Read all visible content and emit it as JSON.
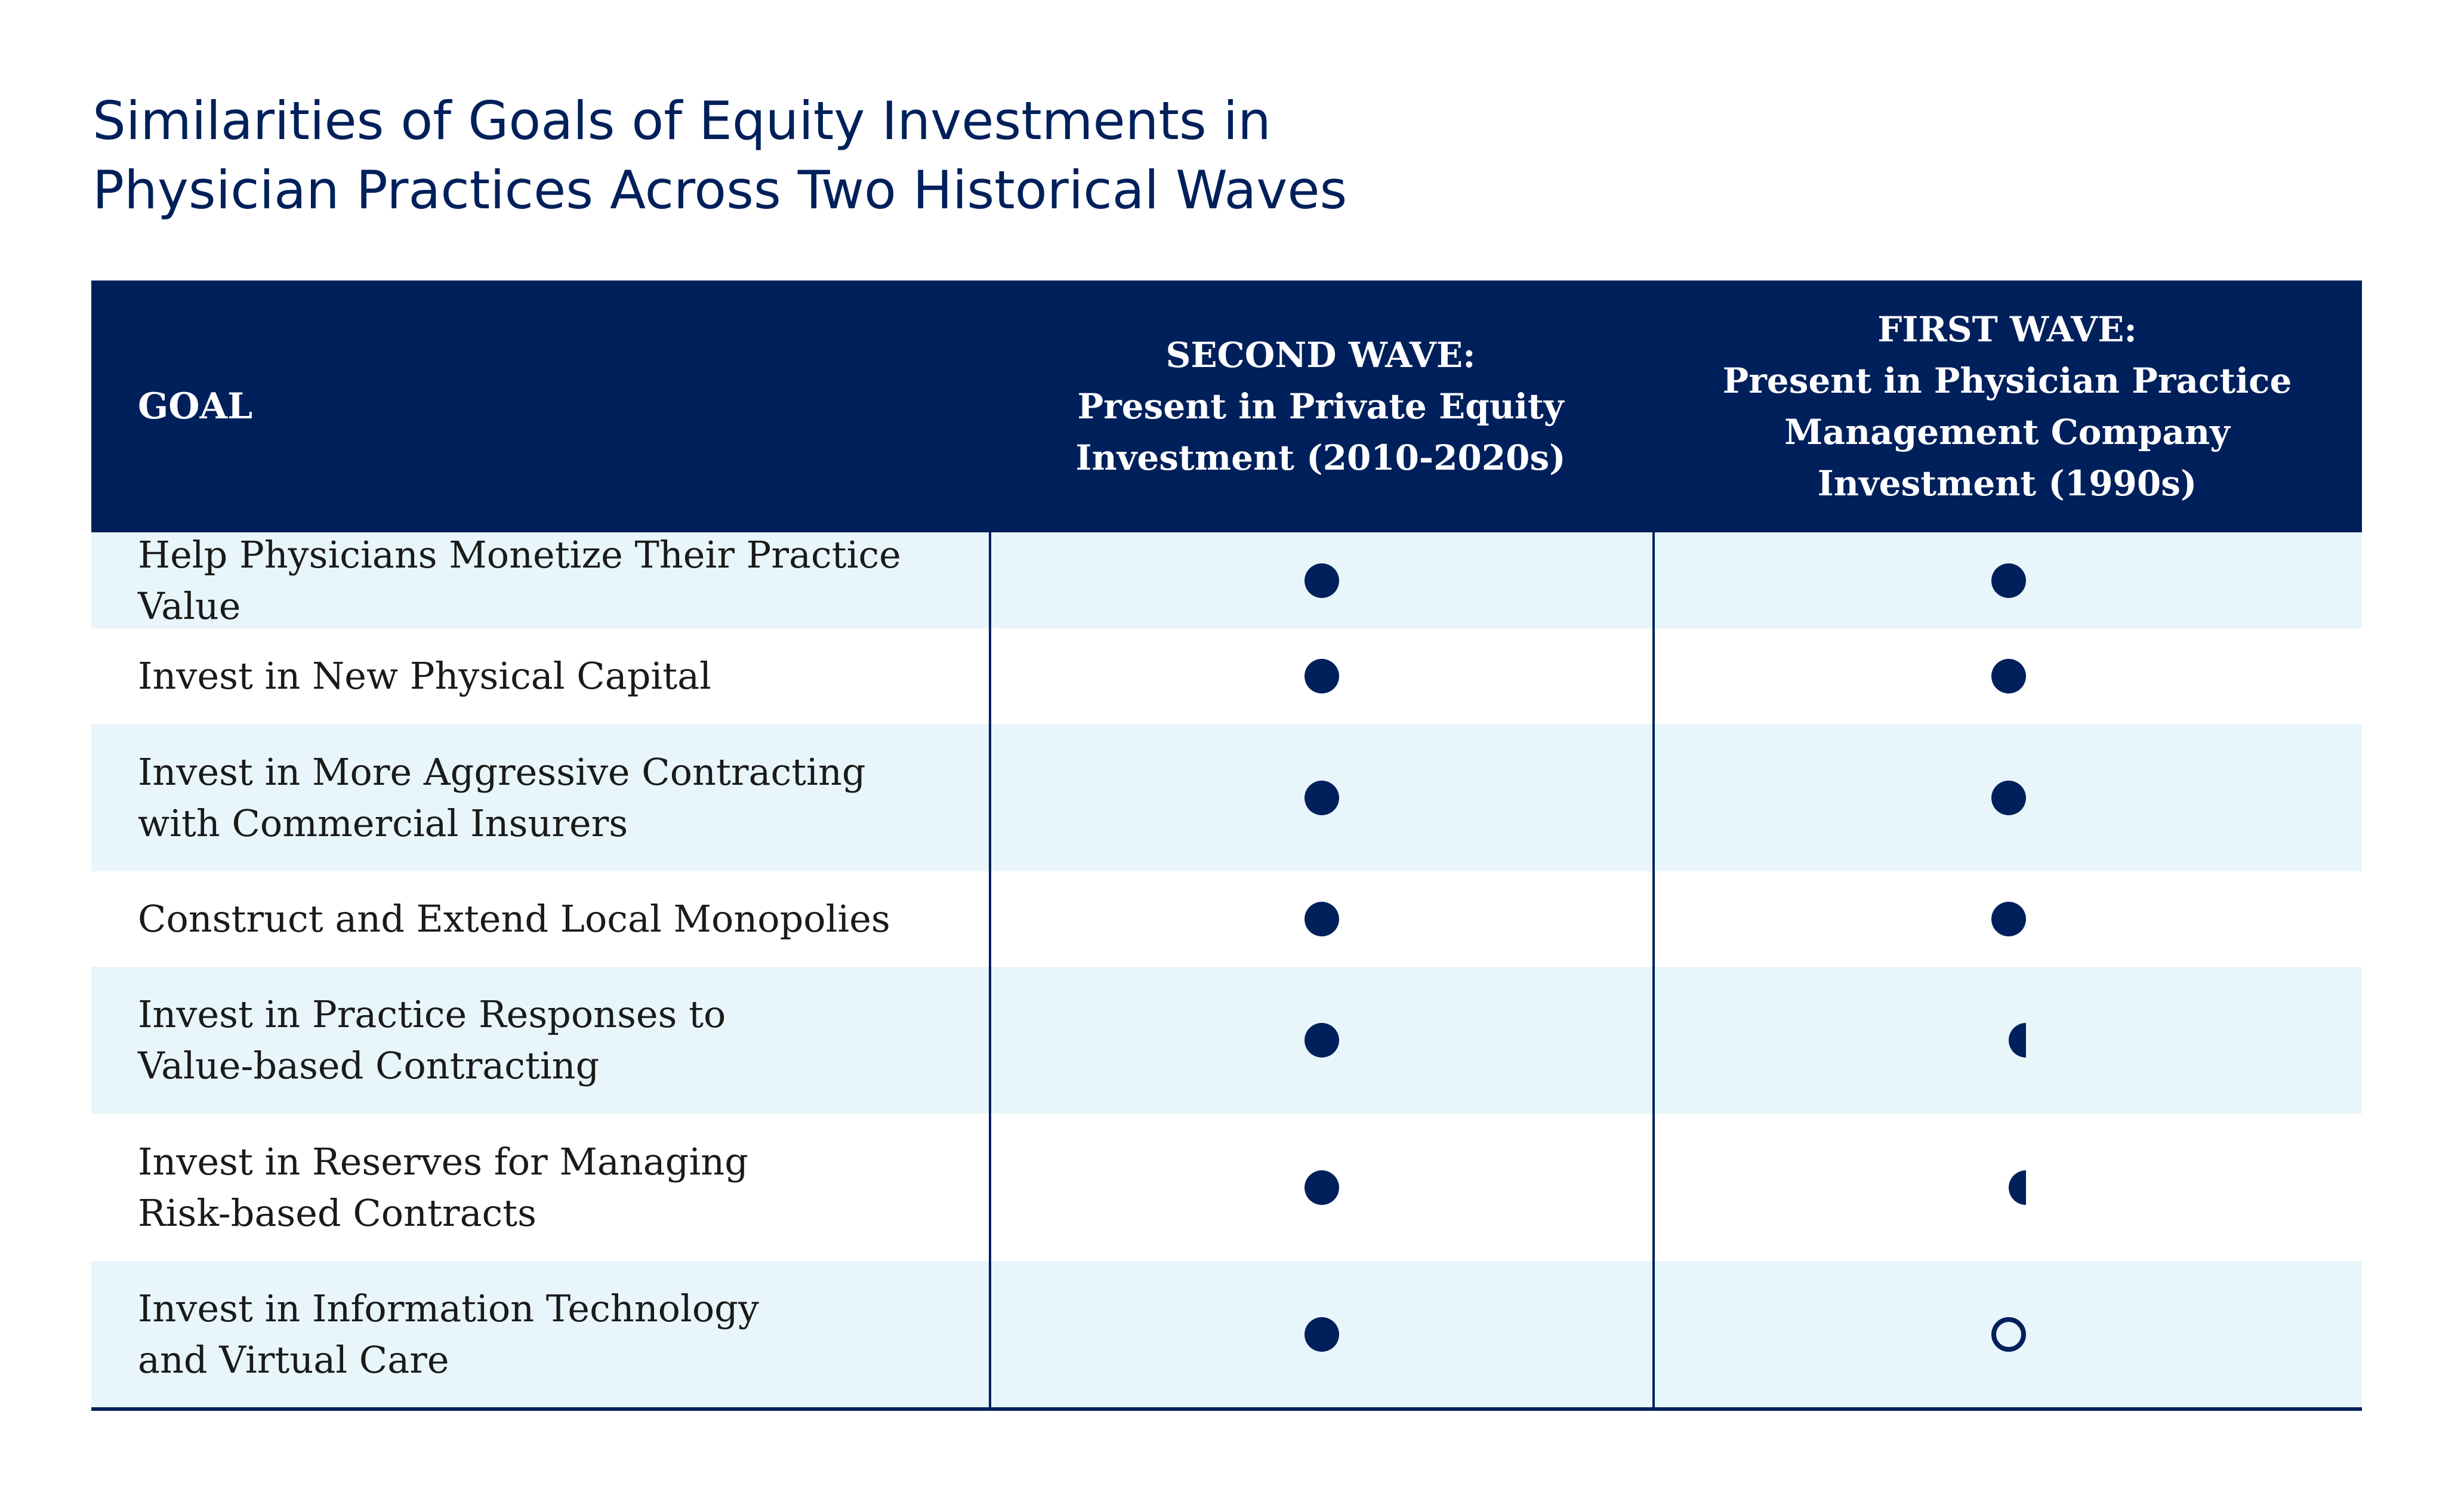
{
  "title": {
    "line1": "Similarities of Goals of Equity Investments in",
    "line2": "Physician Practices Across Two Historical Waves"
  },
  "table": {
    "headers": {
      "goal": "GOAL",
      "second_wave": {
        "line1": "SECOND WAVE:",
        "line2": "Present in Private Equity",
        "line3": "Investment (2010-2020s)"
      },
      "first_wave": {
        "line1": "FIRST WAVE:",
        "line2": "Present in Physician Practice",
        "line3": "Management Company",
        "line4": "Investment (1990s)"
      }
    },
    "rows": [
      {
        "goal": [
          "Help Physicians Monetize Their Practice Value"
        ],
        "second_wave": "full",
        "first_wave": "full"
      },
      {
        "goal": [
          "Invest in New Physical Capital"
        ],
        "second_wave": "full",
        "first_wave": "full"
      },
      {
        "goal": [
          "Invest in More Aggressive Contracting",
          "with Commercial Insurers"
        ],
        "second_wave": "full",
        "first_wave": "full"
      },
      {
        "goal": [
          "Construct and Extend Local Monopolies"
        ],
        "second_wave": "full",
        "first_wave": "full"
      },
      {
        "goal": [
          "Invest in Practice Responses to",
          "Value-based Contracting"
        ],
        "second_wave": "full",
        "first_wave": "half"
      },
      {
        "goal": [
          "Invest in Reserves for Managing",
          "Risk-based Contracts"
        ],
        "second_wave": "full",
        "first_wave": "half"
      },
      {
        "goal": [
          "Invest in Information Technology",
          "and Virtual Care"
        ],
        "second_wave": "full",
        "first_wave": "empty"
      }
    ]
  },
  "colors": {
    "navy": "#00205b",
    "row_tint": "#e8f5fb"
  }
}
